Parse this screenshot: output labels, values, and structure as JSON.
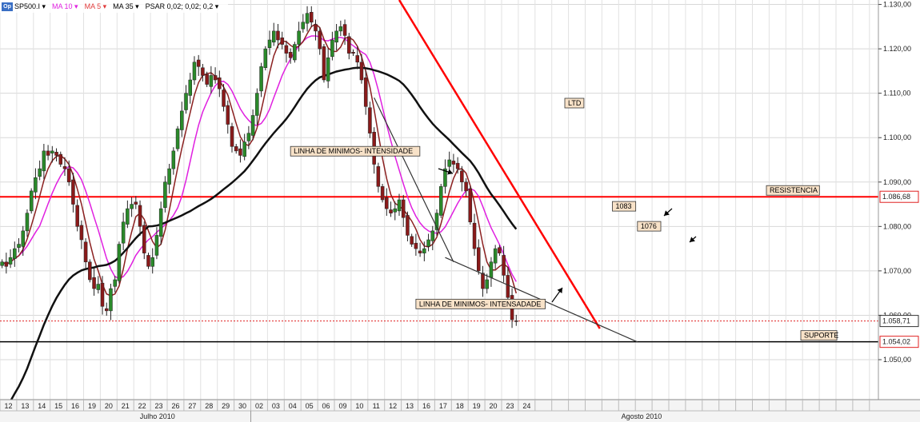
{
  "toolbar": {
    "logo_label": "Op",
    "symbol": "SP500.I ▾",
    "ma10": "MA 10 ▾",
    "ma5": "MA 5 ▾",
    "ma35": "MA 35 ▾",
    "psar": "PSAR 0,02; 0,02; 0,2 ▾",
    "colors": {
      "ma10": "#e020e0",
      "ma5": "#e03a3a",
      "ma35": "#222222"
    }
  },
  "chart_data": {
    "type": "candlestick",
    "symbol": "SP500.I",
    "ylim": [
      1041,
      1131
    ],
    "y_ticks": [
      1050,
      1060,
      1070,
      1080,
      1090,
      1100,
      1110,
      1120,
      1130
    ],
    "y_tick_labels": [
      "1.050,00",
      "1.060,00",
      "1.070,00",
      "1.080,00",
      "1.090,00",
      "1.100,00",
      "1.110,00",
      "1.120,00",
      "1.130,00"
    ],
    "day_labels": [
      "12",
      "13",
      "14",
      "15",
      "16",
      "19",
      "20",
      "21",
      "22",
      "23",
      "26",
      "27",
      "28",
      "29",
      "30",
      "02",
      "03",
      "04",
      "05",
      "06",
      "09",
      "10",
      "11",
      "12",
      "13",
      "16",
      "17",
      "18",
      "19",
      "20",
      "23",
      "24"
    ],
    "month_labels": [
      "Julho 2010",
      "Agosto 2010"
    ],
    "grid": true,
    "candles_per_day": 4,
    "closes": [
      1072,
      1071,
      1073,
      1075,
      1076,
      1079,
      1083,
      1088,
      1091,
      1093,
      1097,
      1096,
      1097,
      1096,
      1094,
      1093,
      1090,
      1085,
      1080,
      1077,
      1072,
      1068,
      1066,
      1067,
      1062,
      1061,
      1066,
      1068,
      1076,
      1081,
      1084,
      1085,
      1085,
      1080,
      1074,
      1071,
      1073,
      1078,
      1084,
      1090,
      1093,
      1097,
      1102,
      1106,
      1110,
      1113,
      1117,
      1116,
      1114,
      1112,
      1114,
      1113,
      1111,
      1107,
      1103,
      1098,
      1097,
      1096,
      1099,
      1101,
      1105,
      1110,
      1116,
      1120,
      1122,
      1124,
      1122,
      1121,
      1119,
      1118,
      1121,
      1124,
      1126,
      1128,
      1126,
      1124,
      1120,
      1113,
      1118,
      1122,
      1124,
      1125,
      1123,
      1119,
      1119,
      1117,
      1113,
      1107,
      1101,
      1094,
      1089,
      1086,
      1084,
      1083,
      1084,
      1086,
      1082,
      1078,
      1076,
      1075,
      1074,
      1075,
      1077,
      1079,
      1083,
      1089,
      1093,
      1095,
      1094,
      1093,
      1090,
      1088,
      1081,
      1075,
      1070,
      1066,
      1068,
      1072,
      1075,
      1074,
      1069,
      1064,
      1059,
      1058.71
    ],
    "ma10_label": "MA 10",
    "ma5_label": "MA 5",
    "ma35_label": "MA 35",
    "resistance": {
      "value": 1086.68,
      "label": "1.086,68",
      "text": "RESISTENCIA",
      "color": "#ff0000"
    },
    "support": {
      "value": 1054.02,
      "label": "1.054,02",
      "text": "SUPORTE",
      "color": "#000000"
    },
    "last_price": {
      "value": 1058.71,
      "label": "1.058,71"
    },
    "trendline_ltd": {
      "label": "LTD",
      "from": {
        "x": 95.0,
        "y": 1131
      },
      "to": {
        "x": 143.0,
        "y": 1057
      },
      "color": "#ff0000"
    },
    "annotations": [
      {
        "text": "LINHA DE MINIMOS- INTENSIDADE",
        "x": 69.0,
        "y": 1096.4
      },
      {
        "text": "LINHA DE MINIMOS- INTENSADADE",
        "x": 99.0,
        "y": 1062.0
      },
      {
        "text": "1083",
        "x": 146.0,
        "y": 1084.0
      },
      {
        "text": "1076",
        "x": 152.0,
        "y": 1079.5
      }
    ],
    "channel_lines": [
      {
        "from": {
          "x": 89.0,
          "y": 1109
        },
        "to": {
          "x": 108.0,
          "y": 1072
        }
      },
      {
        "from": {
          "x": 106.0,
          "y": 1073
        },
        "to": {
          "x": 152.0,
          "y": 1054
        }
      }
    ]
  }
}
